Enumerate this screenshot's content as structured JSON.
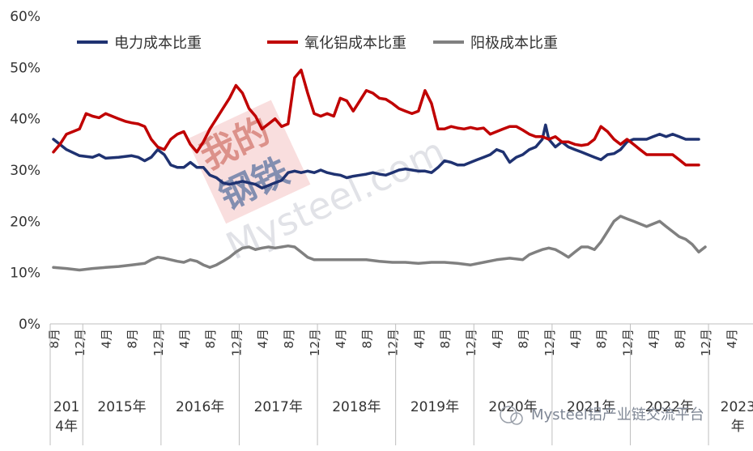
{
  "chart_data": {
    "type": "line",
    "y_ticks": [
      "0%",
      "10%",
      "20%",
      "30%",
      "40%",
      "50%",
      "60%"
    ],
    "ylim": [
      0,
      60
    ],
    "grid": false,
    "legend_position": "top",
    "month_labels": [
      "8月",
      "12月",
      "4月",
      "8月",
      "12月",
      "4月",
      "8月",
      "12月",
      "4月",
      "8月",
      "12月",
      "4月",
      "8月",
      "12月",
      "4月",
      "8月",
      "12月",
      "4月",
      "8月",
      "12月",
      "4月",
      "8月",
      "12月",
      "4月",
      "8月",
      "12月",
      "4月"
    ],
    "month_label_index": [
      0,
      4,
      8,
      12,
      16,
      20,
      24,
      28,
      32,
      36,
      40,
      44,
      48,
      52,
      56,
      60,
      64,
      68,
      72,
      76,
      80,
      84,
      88,
      92,
      96,
      100,
      104
    ],
    "years": [
      {
        "label": "2014年",
        "lines": [
          "201",
          "4年"
        ],
        "start": 0,
        "end": 5
      },
      {
        "label": "2015年",
        "lines": [
          "2015年"
        ],
        "start": 5,
        "end": 17
      },
      {
        "label": "2016年",
        "lines": [
          "2016年"
        ],
        "start": 17,
        "end": 29
      },
      {
        "label": "2017年",
        "lines": [
          "2017年"
        ],
        "start": 29,
        "end": 41
      },
      {
        "label": "2018年",
        "lines": [
          "2018年"
        ],
        "start": 41,
        "end": 53
      },
      {
        "label": "2019年",
        "lines": [
          "2019年"
        ],
        "start": 53,
        "end": 65
      },
      {
        "label": "2020年",
        "lines": [
          "2020年"
        ],
        "start": 65,
        "end": 77
      },
      {
        "label": "2021年",
        "lines": [
          "2021年"
        ],
        "start": 77,
        "end": 89
      },
      {
        "label": "2022年",
        "lines": [
          "2022年"
        ],
        "start": 89,
        "end": 101
      },
      {
        "label": "2023年",
        "lines": [
          "2023",
          "年"
        ],
        "start": 101,
        "end": 110
      }
    ],
    "x_count": 110,
    "series": [
      {
        "name": "电力成本比重",
        "color": "#1f3271",
        "points": [
          [
            0,
            36
          ],
          [
            2,
            34
          ],
          [
            4,
            32.8
          ],
          [
            6,
            32.5
          ],
          [
            7,
            33
          ],
          [
            8,
            32.3
          ],
          [
            10,
            32.5
          ],
          [
            12,
            32.8
          ],
          [
            13,
            32.5
          ],
          [
            14,
            31.8
          ],
          [
            15,
            32.5
          ],
          [
            16,
            34
          ],
          [
            17,
            33
          ],
          [
            18,
            31
          ],
          [
            19,
            30.5
          ],
          [
            20,
            30.5
          ],
          [
            21,
            31.5
          ],
          [
            22,
            30.5
          ],
          [
            23,
            30.5
          ],
          [
            24,
            29
          ],
          [
            25,
            28.5
          ],
          [
            26,
            27.5
          ],
          [
            27,
            27.2
          ],
          [
            28,
            27.5
          ],
          [
            29,
            27.8
          ],
          [
            30,
            27.5
          ],
          [
            31,
            27.2
          ],
          [
            32,
            26.5
          ],
          [
            33,
            27
          ],
          [
            34,
            27.5
          ],
          [
            35,
            28
          ],
          [
            36,
            29.5
          ],
          [
            37,
            29.8
          ],
          [
            38,
            29.5
          ],
          [
            39,
            29.8
          ],
          [
            40,
            29.5
          ],
          [
            41,
            30
          ],
          [
            42,
            29.5
          ],
          [
            43,
            29.2
          ],
          [
            44,
            29
          ],
          [
            45,
            28.5
          ],
          [
            46,
            28.8
          ],
          [
            47,
            29
          ],
          [
            48,
            29.2
          ],
          [
            49,
            29.5
          ],
          [
            50,
            29.2
          ],
          [
            51,
            29
          ],
          [
            52,
            29.5
          ],
          [
            53,
            30
          ],
          [
            54,
            30.2
          ],
          [
            55,
            30
          ],
          [
            56,
            29.8
          ],
          [
            57,
            29.8
          ],
          [
            58,
            29.5
          ],
          [
            59,
            30.5
          ],
          [
            60,
            31.8
          ],
          [
            61,
            31.5
          ],
          [
            62,
            31
          ],
          [
            63,
            31
          ],
          [
            64,
            31.5
          ],
          [
            65,
            32
          ],
          [
            66,
            32.5
          ],
          [
            67,
            33
          ],
          [
            68,
            34
          ],
          [
            69,
            33.5
          ],
          [
            70,
            31.5
          ],
          [
            71,
            32.5
          ],
          [
            72,
            33
          ],
          [
            73,
            34
          ],
          [
            74,
            34.5
          ],
          [
            75,
            36
          ],
          [
            75.5,
            38.8
          ],
          [
            76,
            36
          ],
          [
            77,
            34.5
          ],
          [
            78,
            35.5
          ],
          [
            79,
            34.5
          ],
          [
            80,
            34
          ],
          [
            81,
            33.5
          ],
          [
            82,
            33
          ],
          [
            83,
            32.5
          ],
          [
            84,
            32
          ],
          [
            85,
            33
          ],
          [
            86,
            33.2
          ],
          [
            87,
            34
          ],
          [
            88,
            35.5
          ],
          [
            89,
            36
          ],
          [
            90,
            36
          ],
          [
            91,
            36
          ],
          [
            92,
            36.5
          ],
          [
            93,
            37
          ],
          [
            94,
            36.5
          ],
          [
            95,
            37
          ],
          [
            96,
            36.5
          ],
          [
            97,
            36
          ],
          [
            98,
            36
          ],
          [
            99,
            36
          ]
        ]
      },
      {
        "name": "氧化铝成本比重",
        "color": "#c00000",
        "points": [
          [
            0,
            33.5
          ],
          [
            1,
            35
          ],
          [
            2,
            37
          ],
          [
            3,
            37.5
          ],
          [
            4,
            38
          ],
          [
            5,
            41
          ],
          [
            6,
            40.5
          ],
          [
            7,
            40.2
          ],
          [
            8,
            41
          ],
          [
            9,
            40.5
          ],
          [
            10,
            40
          ],
          [
            11,
            39.5
          ],
          [
            12,
            39.2
          ],
          [
            13,
            39
          ],
          [
            14,
            38.5
          ],
          [
            15,
            36
          ],
          [
            16,
            34.5
          ],
          [
            17,
            34
          ],
          [
            18,
            36
          ],
          [
            19,
            37
          ],
          [
            20,
            37.5
          ],
          [
            21,
            35
          ],
          [
            22,
            33.5
          ],
          [
            23,
            35.5
          ],
          [
            24,
            38
          ],
          [
            25,
            40
          ],
          [
            26,
            42
          ],
          [
            27,
            44
          ],
          [
            28,
            46.5
          ],
          [
            29,
            45
          ],
          [
            30,
            42
          ],
          [
            31,
            40.5
          ],
          [
            32,
            38
          ],
          [
            33,
            39
          ],
          [
            34,
            40
          ],
          [
            35,
            38.5
          ],
          [
            36,
            39
          ],
          [
            37,
            48
          ],
          [
            38,
            49.5
          ],
          [
            39,
            45
          ],
          [
            40,
            41
          ],
          [
            41,
            40.5
          ],
          [
            42,
            41
          ],
          [
            43,
            40.5
          ],
          [
            44,
            44
          ],
          [
            45,
            43.5
          ],
          [
            46,
            41.5
          ],
          [
            47,
            43.5
          ],
          [
            48,
            45.5
          ],
          [
            49,
            45
          ],
          [
            50,
            44
          ],
          [
            51,
            43.8
          ],
          [
            52,
            43
          ],
          [
            53,
            42
          ],
          [
            54,
            41.5
          ],
          [
            55,
            41
          ],
          [
            56,
            41.5
          ],
          [
            57,
            45.5
          ],
          [
            58,
            43
          ],
          [
            59,
            38
          ],
          [
            60,
            38
          ],
          [
            61,
            38.5
          ],
          [
            62,
            38.2
          ],
          [
            63,
            38
          ],
          [
            64,
            38.3
          ],
          [
            65,
            38
          ],
          [
            66,
            38.2
          ],
          [
            67,
            37
          ],
          [
            68,
            37.5
          ],
          [
            69,
            38
          ],
          [
            70,
            38.5
          ],
          [
            71,
            38.5
          ],
          [
            72,
            37.8
          ],
          [
            73,
            37
          ],
          [
            74,
            36.5
          ],
          [
            75,
            36.5
          ],
          [
            76,
            36
          ],
          [
            77,
            36.5
          ],
          [
            78,
            35.5
          ],
          [
            79,
            35.5
          ],
          [
            80,
            35
          ],
          [
            81,
            34.8
          ],
          [
            82,
            35
          ],
          [
            83,
            36
          ],
          [
            84,
            38.5
          ],
          [
            85,
            37.5
          ],
          [
            86,
            36
          ],
          [
            87,
            35
          ],
          [
            88,
            36
          ],
          [
            89,
            35
          ],
          [
            90,
            34
          ],
          [
            91,
            33
          ],
          [
            92,
            33
          ],
          [
            93,
            33
          ],
          [
            94,
            33
          ],
          [
            95,
            33
          ],
          [
            96,
            32
          ],
          [
            97,
            31
          ],
          [
            98,
            31
          ],
          [
            99,
            31
          ]
        ]
      },
      {
        "name": "阳极成本比重",
        "color": "#808080",
        "points": [
          [
            0,
            11
          ],
          [
            2,
            10.8
          ],
          [
            4,
            10.5
          ],
          [
            6,
            10.8
          ],
          [
            8,
            11
          ],
          [
            10,
            11.2
          ],
          [
            12,
            11.5
          ],
          [
            14,
            11.8
          ],
          [
            15,
            12.5
          ],
          [
            16,
            13
          ],
          [
            17,
            12.8
          ],
          [
            18,
            12.5
          ],
          [
            19,
            12.2
          ],
          [
            20,
            12
          ],
          [
            21,
            12.5
          ],
          [
            22,
            12.2
          ],
          [
            23,
            11.5
          ],
          [
            24,
            11
          ],
          [
            25,
            11.5
          ],
          [
            26,
            12.2
          ],
          [
            27,
            13
          ],
          [
            28,
            14
          ],
          [
            29,
            14.8
          ],
          [
            30,
            15
          ],
          [
            31,
            14.5
          ],
          [
            32,
            14.8
          ],
          [
            33,
            15
          ],
          [
            34,
            14.8
          ],
          [
            35,
            15
          ],
          [
            36,
            15.2
          ],
          [
            37,
            15
          ],
          [
            38,
            14
          ],
          [
            39,
            13
          ],
          [
            40,
            12.5
          ],
          [
            42,
            12.5
          ],
          [
            44,
            12.5
          ],
          [
            46,
            12.5
          ],
          [
            48,
            12.5
          ],
          [
            50,
            12.2
          ],
          [
            52,
            12
          ],
          [
            54,
            12
          ],
          [
            56,
            11.8
          ],
          [
            58,
            12
          ],
          [
            60,
            12
          ],
          [
            62,
            11.8
          ],
          [
            64,
            11.5
          ],
          [
            66,
            12
          ],
          [
            68,
            12.5
          ],
          [
            70,
            12.8
          ],
          [
            72,
            12.5
          ],
          [
            73,
            13.5
          ],
          [
            74,
            14
          ],
          [
            75,
            14.5
          ],
          [
            76,
            14.8
          ],
          [
            77,
            14.5
          ],
          [
            78,
            13.8
          ],
          [
            79,
            13
          ],
          [
            80,
            14
          ],
          [
            81,
            15
          ],
          [
            82,
            15
          ],
          [
            83,
            14.5
          ],
          [
            84,
            16
          ],
          [
            85,
            18
          ],
          [
            86,
            20
          ],
          [
            87,
            21
          ],
          [
            88,
            20.5
          ],
          [
            89,
            20
          ],
          [
            90,
            19.5
          ],
          [
            91,
            19
          ],
          [
            92,
            19.5
          ],
          [
            93,
            20
          ],
          [
            94,
            19
          ],
          [
            95,
            18
          ],
          [
            96,
            17
          ],
          [
            97,
            16.5
          ],
          [
            98,
            15.5
          ],
          [
            99,
            14
          ],
          [
            100,
            15
          ]
        ]
      }
    ]
  },
  "watermark": {
    "line1": "我的",
    "line2": "钢铁",
    "text": "Mysteel.com"
  },
  "footer": {
    "text": "Mysteel铝产业链交流平台"
  }
}
